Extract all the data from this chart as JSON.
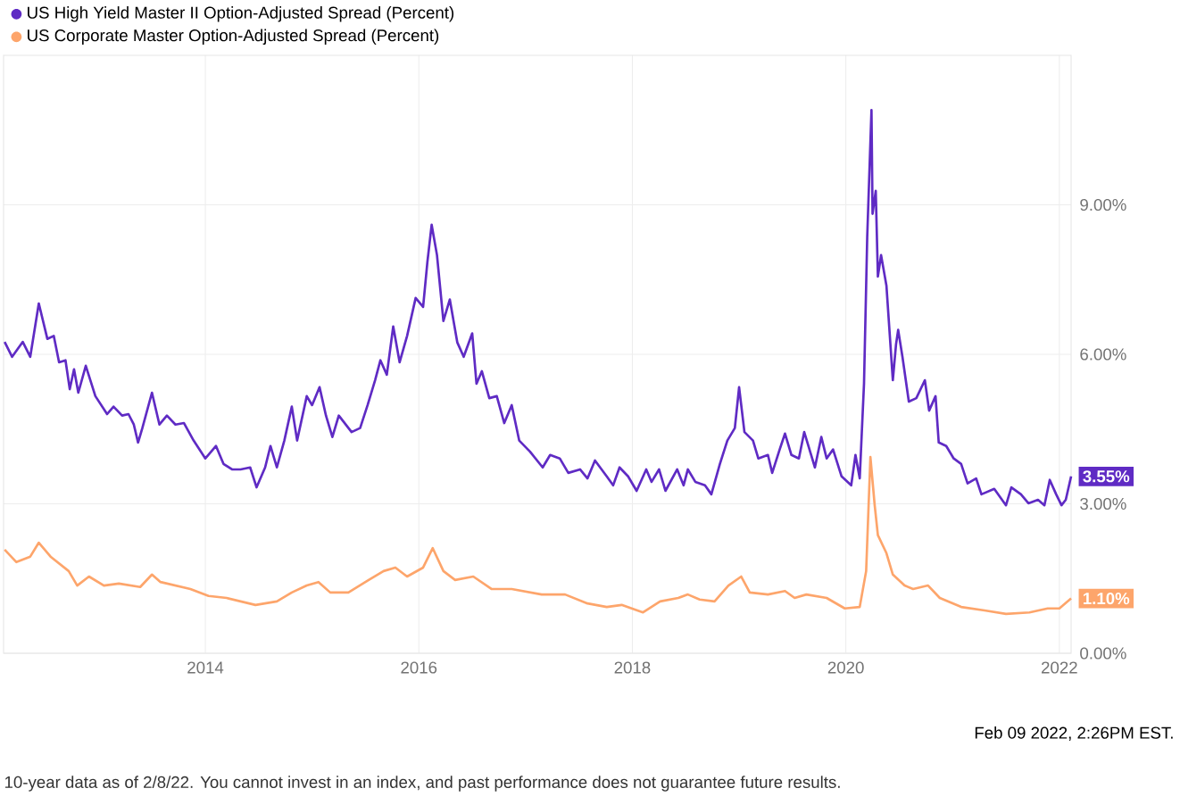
{
  "chart_data": {
    "type": "line",
    "series": [
      {
        "name": "US High Yield Master II Option-Adjusted Spread (Percent)",
        "color": "#5f2bc4",
        "x": [
          2012.12,
          2012.19,
          2012.29,
          2012.36,
          2012.44,
          2012.52,
          2012.58,
          2012.63,
          2012.69,
          2012.73,
          2012.77,
          2012.81,
          2012.88,
          2012.97,
          2013.08,
          2013.14,
          2013.22,
          2013.28,
          2013.33,
          2013.37,
          2013.41,
          2013.5,
          2013.57,
          2013.64,
          2013.72,
          2013.8,
          2013.89,
          2014.0,
          2014.1,
          2014.17,
          2014.25,
          2014.33,
          2014.42,
          2014.48,
          2014.56,
          2014.61,
          2014.67,
          2014.74,
          2014.81,
          2014.86,
          2014.95,
          2015.0,
          2015.07,
          2015.13,
          2015.19,
          2015.25,
          2015.37,
          2015.45,
          2015.52,
          2015.59,
          2015.64,
          2015.7,
          2015.76,
          2015.82,
          2015.89,
          2015.97,
          2016.04,
          2016.08,
          2016.12,
          2016.17,
          2016.23,
          2016.29,
          2016.36,
          2016.42,
          2016.5,
          2016.54,
          2016.59,
          2016.66,
          2016.73,
          2016.8,
          2016.87,
          2016.94,
          2017.04,
          2017.16,
          2017.23,
          2017.32,
          2017.4,
          2017.51,
          2017.58,
          2017.65,
          2017.76,
          2017.82,
          2017.88,
          2017.96,
          2018.04,
          2018.13,
          2018.18,
          2018.25,
          2018.31,
          2018.42,
          2018.48,
          2018.52,
          2018.59,
          2018.68,
          2018.74,
          2018.82,
          2018.89,
          2018.96,
          2019.0,
          2019.05,
          2019.13,
          2019.18,
          2019.27,
          2019.31,
          2019.38,
          2019.43,
          2019.49,
          2019.56,
          2019.61,
          2019.71,
          2019.77,
          2019.82,
          2019.88,
          2019.96,
          2020.05,
          2020.09,
          2020.13,
          2020.17,
          2020.2,
          2020.24,
          2020.25,
          2020.28,
          2020.3,
          2020.33,
          2020.38,
          2020.44,
          2020.47,
          2020.49,
          2020.53,
          2020.59,
          2020.66,
          2020.74,
          2020.78,
          2020.84,
          2020.87,
          2020.94,
          2021.01,
          2021.08,
          2021.14,
          2021.22,
          2021.27,
          2021.39,
          2021.5,
          2021.55,
          2021.64,
          2021.71,
          2021.8,
          2021.86,
          2021.91,
          2021.97,
          2022.02,
          2022.06,
          2022.11
        ],
        "values": [
          6.25,
          5.95,
          6.25,
          5.95,
          7.02,
          6.31,
          6.37,
          5.84,
          5.88,
          5.3,
          5.7,
          5.23,
          5.77,
          5.16,
          4.8,
          4.95,
          4.77,
          4.8,
          4.59,
          4.23,
          4.52,
          5.23,
          4.59,
          4.77,
          4.59,
          4.62,
          4.27,
          3.91,
          4.16,
          3.8,
          3.69,
          3.69,
          3.73,
          3.33,
          3.73,
          4.16,
          3.73,
          4.27,
          4.95,
          4.27,
          5.16,
          4.98,
          5.34,
          4.77,
          4.34,
          4.77,
          4.44,
          4.52,
          4.98,
          5.48,
          5.88,
          5.59,
          6.56,
          5.84,
          6.37,
          7.13,
          6.95,
          7.85,
          8.6,
          7.99,
          6.67,
          7.1,
          6.24,
          5.95,
          6.42,
          5.41,
          5.66,
          5.12,
          5.16,
          4.62,
          4.98,
          4.27,
          4.05,
          3.73,
          3.98,
          3.91,
          3.62,
          3.69,
          3.51,
          3.87,
          3.55,
          3.37,
          3.73,
          3.55,
          3.26,
          3.69,
          3.44,
          3.69,
          3.26,
          3.69,
          3.37,
          3.69,
          3.44,
          3.37,
          3.19,
          3.8,
          4.27,
          4.52,
          5.34,
          4.44,
          4.27,
          3.91,
          3.98,
          3.62,
          4.09,
          4.41,
          3.98,
          3.91,
          4.44,
          3.73,
          4.34,
          3.91,
          4.09,
          3.55,
          3.37,
          3.98,
          3.51,
          5.41,
          8.35,
          10.9,
          8.82,
          9.28,
          7.56,
          7.99,
          7.38,
          5.48,
          6.2,
          6.49,
          5.95,
          5.05,
          5.12,
          5.48,
          4.87,
          5.16,
          4.23,
          4.16,
          3.91,
          3.8,
          3.41,
          3.51,
          3.19,
          3.3,
          2.97,
          3.33,
          3.19,
          3.01,
          3.08,
          2.97,
          3.48,
          3.19,
          2.97,
          3.08,
          3.55
        ]
      },
      {
        "name": "US Corporate Master Option-Adjusted Spread (Percent)",
        "color": "#fda56b",
        "x": [
          2012.12,
          2012.23,
          2012.36,
          2012.44,
          2012.55,
          2012.72,
          2012.8,
          2012.91,
          2013.05,
          2013.19,
          2013.39,
          2013.5,
          2013.58,
          2013.86,
          2014.03,
          2014.2,
          2014.47,
          2014.67,
          2014.81,
          2014.95,
          2015.06,
          2015.17,
          2015.34,
          2015.53,
          2015.67,
          2015.78,
          2015.89,
          2016.04,
          2016.13,
          2016.23,
          2016.34,
          2016.51,
          2016.68,
          2016.87,
          2017.15,
          2017.37,
          2017.58,
          2017.76,
          2017.9,
          2018.1,
          2018.26,
          2018.43,
          2018.52,
          2018.63,
          2018.77,
          2018.9,
          2019.02,
          2019.1,
          2019.27,
          2019.43,
          2019.52,
          2019.63,
          2019.82,
          2019.99,
          2020.13,
          2020.19,
          2020.23,
          2020.27,
          2020.3,
          2020.38,
          2020.44,
          2020.55,
          2020.63,
          2020.77,
          2020.88,
          2021.08,
          2021.3,
          2021.5,
          2021.72,
          2021.89,
          2022.0,
          2022.11
        ],
        "values": [
          2.08,
          1.83,
          1.94,
          2.22,
          1.94,
          1.65,
          1.36,
          1.54,
          1.36,
          1.4,
          1.33,
          1.58,
          1.43,
          1.29,
          1.15,
          1.11,
          0.97,
          1.04,
          1.22,
          1.36,
          1.43,
          1.22,
          1.22,
          1.47,
          1.65,
          1.72,
          1.54,
          1.72,
          2.11,
          1.65,
          1.47,
          1.54,
          1.29,
          1.29,
          1.18,
          1.18,
          1.0,
          0.93,
          0.97,
          0.82,
          1.04,
          1.11,
          1.18,
          1.08,
          1.04,
          1.36,
          1.54,
          1.22,
          1.18,
          1.25,
          1.11,
          1.18,
          1.11,
          0.9,
          0.93,
          1.65,
          3.94,
          2.97,
          2.37,
          2.01,
          1.58,
          1.36,
          1.29,
          1.36,
          1.11,
          0.93,
          0.86,
          0.79,
          0.82,
          0.9,
          0.9,
          1.1
        ]
      }
    ],
    "xlim": [
      2012.11,
      2022.11
    ],
    "xticks": [
      2014,
      2016,
      2018,
      2020,
      2022
    ],
    "ylim": [
      0,
      12
    ],
    "yticks": [
      {
        "value": 0,
        "label": "0.00%"
      },
      {
        "value": 3,
        "label": "3.00%"
      },
      {
        "value": 6,
        "label": "6.00%"
      },
      {
        "value": 9,
        "label": "9.00%"
      }
    ],
    "grid": true,
    "legend": "top left",
    "annotations": [
      {
        "text": "3.55%",
        "x": 2022.11,
        "y": 3.55
      },
      {
        "text": "1.10%",
        "x": 2022.11,
        "y": 1.1
      },
      "Feb 09 2022, 2:26PM EST.",
      "10-year data as of 2/8/22. You cannot invest in an index, and past performance does not guarantee future results."
    ]
  }
}
